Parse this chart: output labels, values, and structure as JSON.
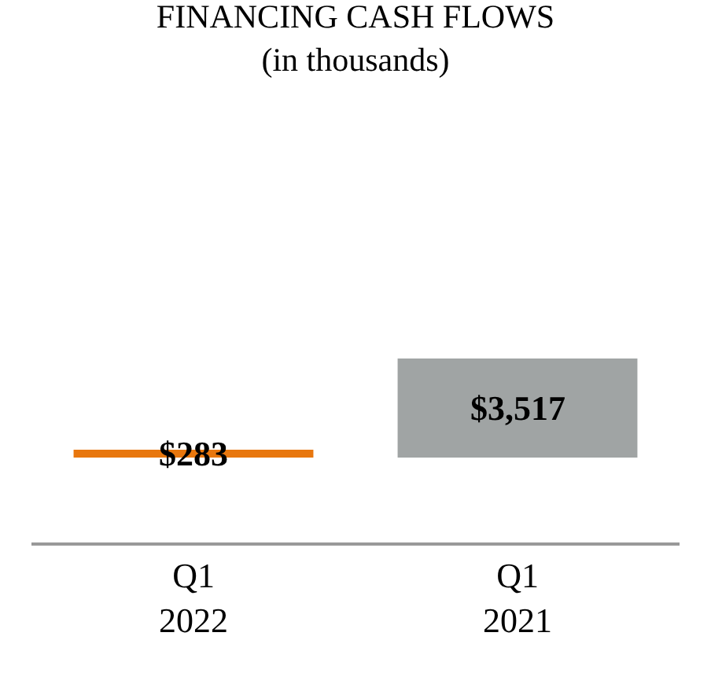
{
  "chart_data": {
    "type": "bar",
    "title": "FINANCING CASH FLOWS",
    "subtitle": "(in thousands)",
    "categories": [
      "Q1 2022",
      "Q1 2021"
    ],
    "values": [
      283,
      3517
    ],
    "colors": [
      "#e8770e",
      "#a0a4a4"
    ],
    "value_labels": [
      "$283",
      "$3,517"
    ],
    "grid": false
  }
}
